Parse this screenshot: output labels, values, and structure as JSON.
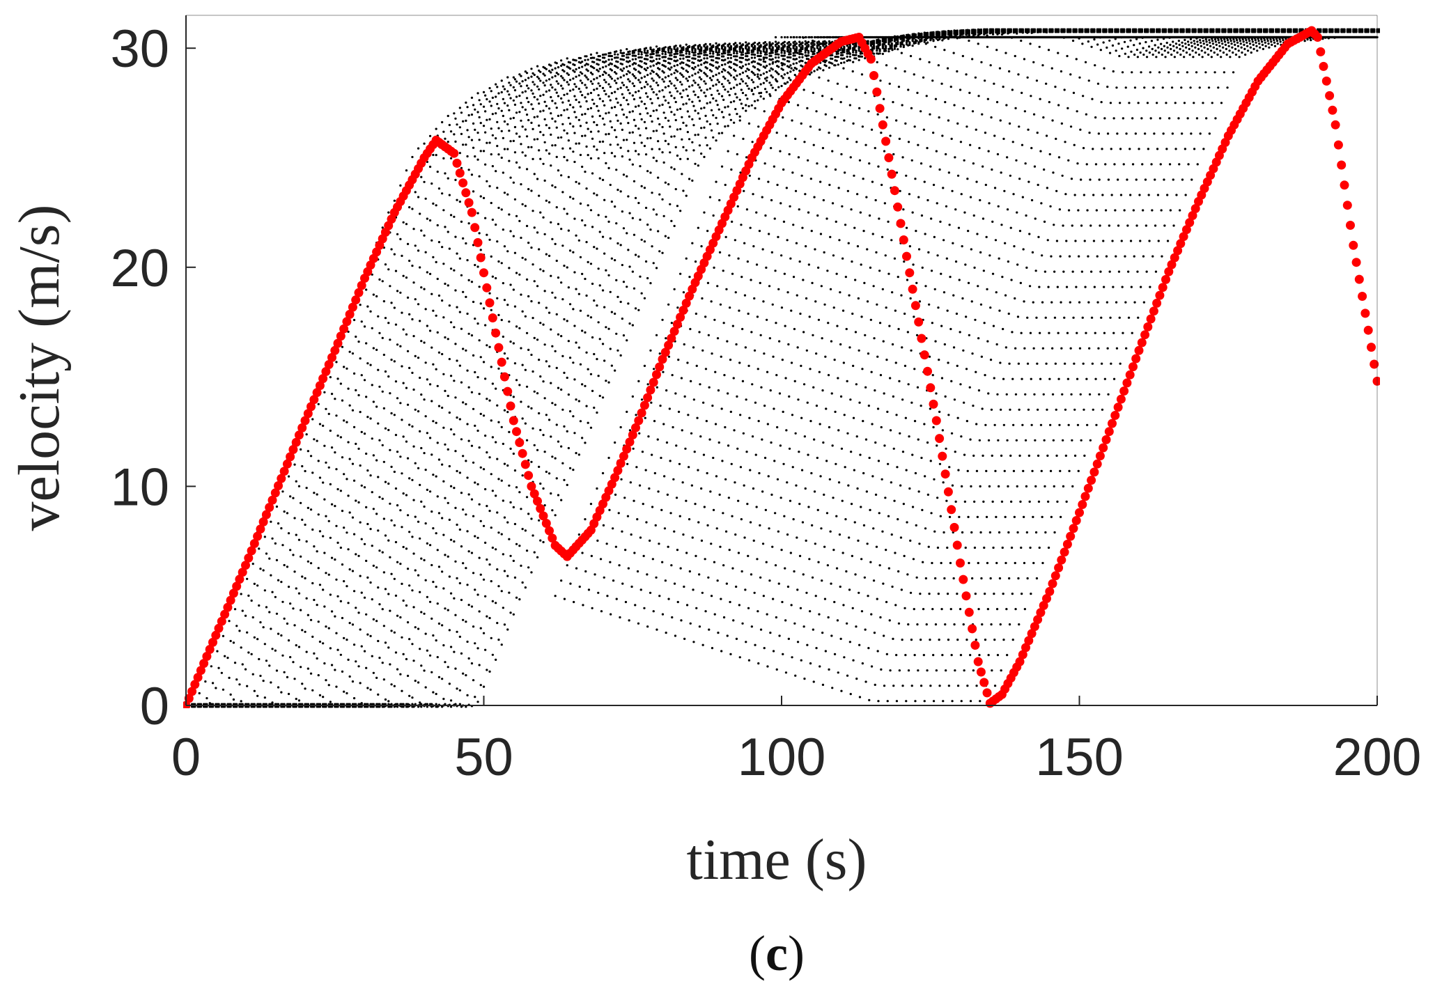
{
  "chart_data": {
    "type": "scatter",
    "title": "",
    "xlabel": "time (s)",
    "ylabel": "velocity (m/s)",
    "panel_label": "(c)",
    "panel_label_parts": [
      "(",
      "c",
      ")"
    ],
    "xlim": [
      0,
      200
    ],
    "ylim": [
      0,
      31.5
    ],
    "x_ticks": [
      0,
      50,
      100,
      150,
      200
    ],
    "y_ticks": [
      0,
      10,
      20,
      30
    ],
    "x_tick_labels": [
      "0",
      "50",
      "100",
      "150",
      "200"
    ],
    "y_tick_labels": [
      "0",
      "10",
      "20",
      "30"
    ],
    "grid": false,
    "legend": "none",
    "colors": {
      "background_traces": "#000000",
      "highlighted_trace": "#ff0000",
      "axes": "#262626"
    },
    "background_traces": {
      "count": 40,
      "description_values": "family of dotted velocity trajectories, each delayed by a fixed start offset, rising from 0 and saturating near 30 m/s",
      "start_offset_step_s": 1.25,
      "sample_step_s": 1.0
    },
    "series": [
      {
        "role": "highlighted",
        "x": [
          0,
          5,
          10,
          15,
          20,
          25,
          30,
          35,
          40,
          42,
          45,
          48,
          52,
          55,
          58,
          62,
          64,
          68,
          72,
          76,
          80,
          85,
          90,
          95,
          100,
          105,
          110,
          113,
          115,
          118,
          122,
          126,
          130,
          133,
          135,
          137,
          140,
          145,
          150,
          155,
          160,
          165,
          170,
          175,
          180,
          185,
          189,
          190,
          193,
          196,
          200
        ],
        "y": [
          0,
          3.2,
          6.4,
          9.7,
          13.0,
          16.2,
          19.5,
          22.5,
          25.0,
          25.8,
          25.2,
          22.5,
          17.0,
          13.0,
          10.0,
          7.3,
          6.8,
          8.0,
          10.4,
          13.0,
          15.8,
          19.0,
          22.0,
          25.0,
          27.5,
          29.3,
          30.3,
          30.5,
          29.5,
          25.0,
          19.0,
          13.0,
          6.5,
          2.0,
          0.1,
          0.5,
          2.0,
          5.2,
          8.8,
          12.5,
          16.2,
          19.8,
          23.0,
          26.0,
          28.5,
          30.2,
          30.8,
          30.5,
          26.5,
          21.0,
          14.8
        ]
      }
    ]
  }
}
